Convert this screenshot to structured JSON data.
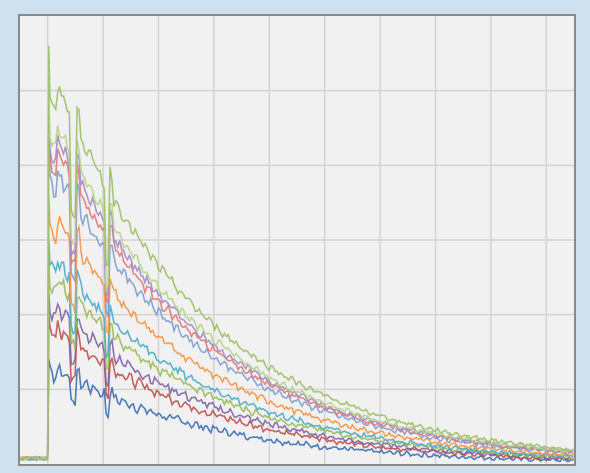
{
  "chart_data": {
    "type": "line",
    "title": "",
    "xlabel": "",
    "ylabel": "",
    "grid": true,
    "legend": "none",
    "xlim": [
      0,
      10
    ],
    "ylim": [
      0,
      6
    ],
    "x_gridlines": [
      0.5,
      1.5,
      2.5,
      3.5,
      4.5,
      5.5,
      6.5,
      7.5,
      8.5,
      9.5
    ],
    "y_gridlines": [
      1,
      2,
      3,
      4,
      5
    ],
    "onset_x": 0.5,
    "step_x": [
      1.0,
      1.6
    ],
    "end_y_fraction": 0.04,
    "series": [
      {
        "color": "#3b6fb6",
        "values_at_onset": 1.4
      },
      {
        "color": "#c0504d",
        "values_at_onset": 2.0
      },
      {
        "color": "#8064a2",
        "values_at_onset": 2.3
      },
      {
        "color": "#9bbb59",
        "values_at_onset": 2.7
      },
      {
        "color": "#4bacc6",
        "values_at_onset": 3.0
      },
      {
        "color": "#f79646",
        "values_at_onset": 3.6
      },
      {
        "color": "#7f9fd0",
        "values_at_onset": 4.3
      },
      {
        "color": "#e07a78",
        "values_at_onset": 4.6
      },
      {
        "color": "#a48cc4",
        "values_at_onset": 4.8
      },
      {
        "color": "#b6d48a",
        "values_at_onset": 5.0
      },
      {
        "color": "#9cbf6a",
        "values_at_onset": 5.6
      }
    ]
  }
}
